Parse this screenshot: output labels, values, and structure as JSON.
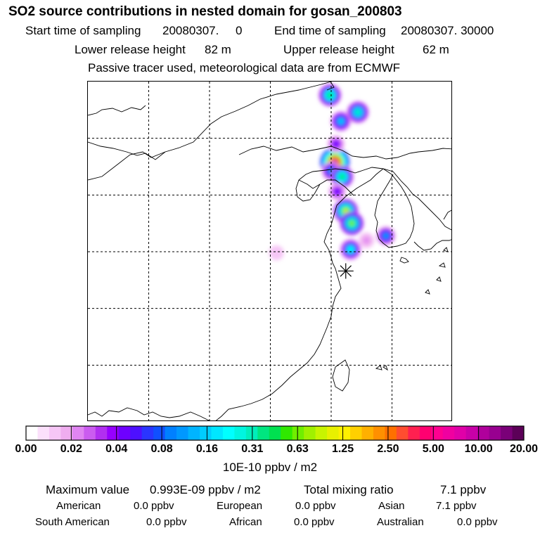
{
  "header": {
    "title": "SO2 source contributions in nested domain for gosan_200803",
    "start_label": "Start time of sampling",
    "start_value": "20080307.     0",
    "end_label": "End time of sampling",
    "end_value": "20080307. 30000",
    "lower_label": "Lower release height",
    "lower_value": "82 m",
    "upper_label": "Upper release height",
    "upper_value": "62 m",
    "tracer_note": "Passive tracer used, meteorological data are from ECMWF"
  },
  "chart_data": {
    "type": "heatmap",
    "description_unit": "10E-10 ppbv / m2",
    "colorbar": {
      "tick_labels": [
        "0.00",
        "0.02",
        "0.04",
        "0.08",
        "0.16",
        "0.31",
        "0.63",
        "1.25",
        "2.50",
        "5.00",
        "10.00",
        "20.00"
      ],
      "colors": [
        "#ffffff",
        "#fbe0fb",
        "#f6c6f6",
        "#efadef",
        "#e085f2",
        "#cb5cf0",
        "#b12ff0",
        "#9600ff",
        "#6e00ff",
        "#4d10ff",
        "#2a35ff",
        "#1050ff",
        "#0080ff",
        "#0098ff",
        "#00b4ff",
        "#00ccff",
        "#00e6ff",
        "#00ffff",
        "#00f5e0",
        "#00eebb",
        "#00e680",
        "#00e050",
        "#30e800",
        "#70ee00",
        "#a0f000",
        "#c8f400",
        "#e8f000",
        "#fff000",
        "#ffd000",
        "#ffb000",
        "#ff9000",
        "#ff7000",
        "#ff4d30",
        "#ff2050",
        "#ff0070",
        "#ff0090",
        "#f000a0",
        "#e000a8",
        "#c800a8",
        "#b0009c",
        "#980090",
        "#7a0078",
        "#5c0058"
      ]
    },
    "grid": true,
    "receptor_marker": "gosan",
    "hotspots": [
      {
        "lon": 125.3,
        "lat": 42.9,
        "level": 0.9
      },
      {
        "lon": 126.2,
        "lat": 38.6,
        "level": 0.6
      },
      {
        "lon": 126.7,
        "lat": 37.5,
        "level": 0.55
      },
      {
        "lon": 124.9,
        "lat": 48.8,
        "level": 0.5
      },
      {
        "lon": 127.2,
        "lat": 47.3,
        "level": 0.45
      },
      {
        "lon": 126.6,
        "lat": 35.2,
        "level": 0.4
      },
      {
        "lon": 125.8,
        "lat": 46.5,
        "level": 0.35
      },
      {
        "lon": 129.5,
        "lat": 36.4,
        "level": 0.3
      },
      {
        "lon": 125.0,
        "lat": 42.1,
        "level": 0.3
      },
      {
        "lon": 125.9,
        "lat": 41.6,
        "level": 0.5
      },
      {
        "lon": 125.4,
        "lat": 44.5,
        "level": 0.2
      },
      {
        "lon": 125.5,
        "lat": 40.3,
        "level": 0.2
      },
      {
        "lon": 127.9,
        "lat": 36.0,
        "level": 0.1
      },
      {
        "lon": 120.5,
        "lat": 34.9,
        "level": 0.05
      }
    ]
  },
  "stats": {
    "max_label": "Maximum value",
    "max_value": "0.993E-09 ppbv / m2",
    "total_label": "Total mixing ratio",
    "total_value": "7.1 ppbv"
  },
  "regions": {
    "american_label": "American",
    "american_value": "0.0 ppbv",
    "european_label": "European",
    "european_value": "0.0 ppbv",
    "asian_label": "Asian",
    "asian_value": "7.1 ppbv",
    "south_american_label": "South American",
    "south_american_value": "0.0 ppbv",
    "african_label": "African",
    "african_value": "0.0 ppbv",
    "australian_label": "Australian",
    "australian_value": "0.0 ppbv"
  }
}
